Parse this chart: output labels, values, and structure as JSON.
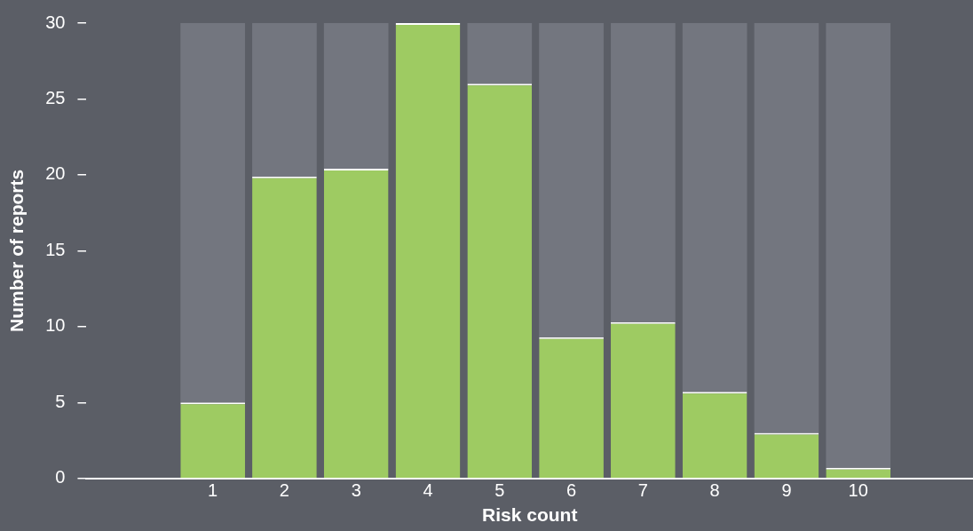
{
  "chart_data": {
    "type": "bar",
    "xlabel": "Risk count",
    "ylabel": "Number of reports",
    "x": [
      1,
      2,
      3,
      4,
      5,
      6,
      7,
      8,
      9,
      10
    ],
    "xlim": [
      -0.76,
      11.6
    ],
    "xticks": [
      1,
      2,
      3,
      4,
      5,
      6,
      7,
      8,
      9,
      10
    ],
    "ylim": [
      0,
      30
    ],
    "yticks": [
      0,
      5,
      10,
      15,
      20,
      25,
      30
    ],
    "grid": false,
    "legend": false,
    "stacked": true,
    "series": [
      {
        "color": "#9ecb62",
        "values": [
          5,
          19.9,
          20.4,
          30,
          26,
          9.3,
          10.3,
          5.7,
          3,
          0.7
        ]
      },
      {
        "color": "#73767f",
        "values": [
          25,
          10.1,
          9.6,
          0,
          4,
          20.7,
          19.7,
          24.3,
          27,
          29.3
        ]
      }
    ]
  }
}
